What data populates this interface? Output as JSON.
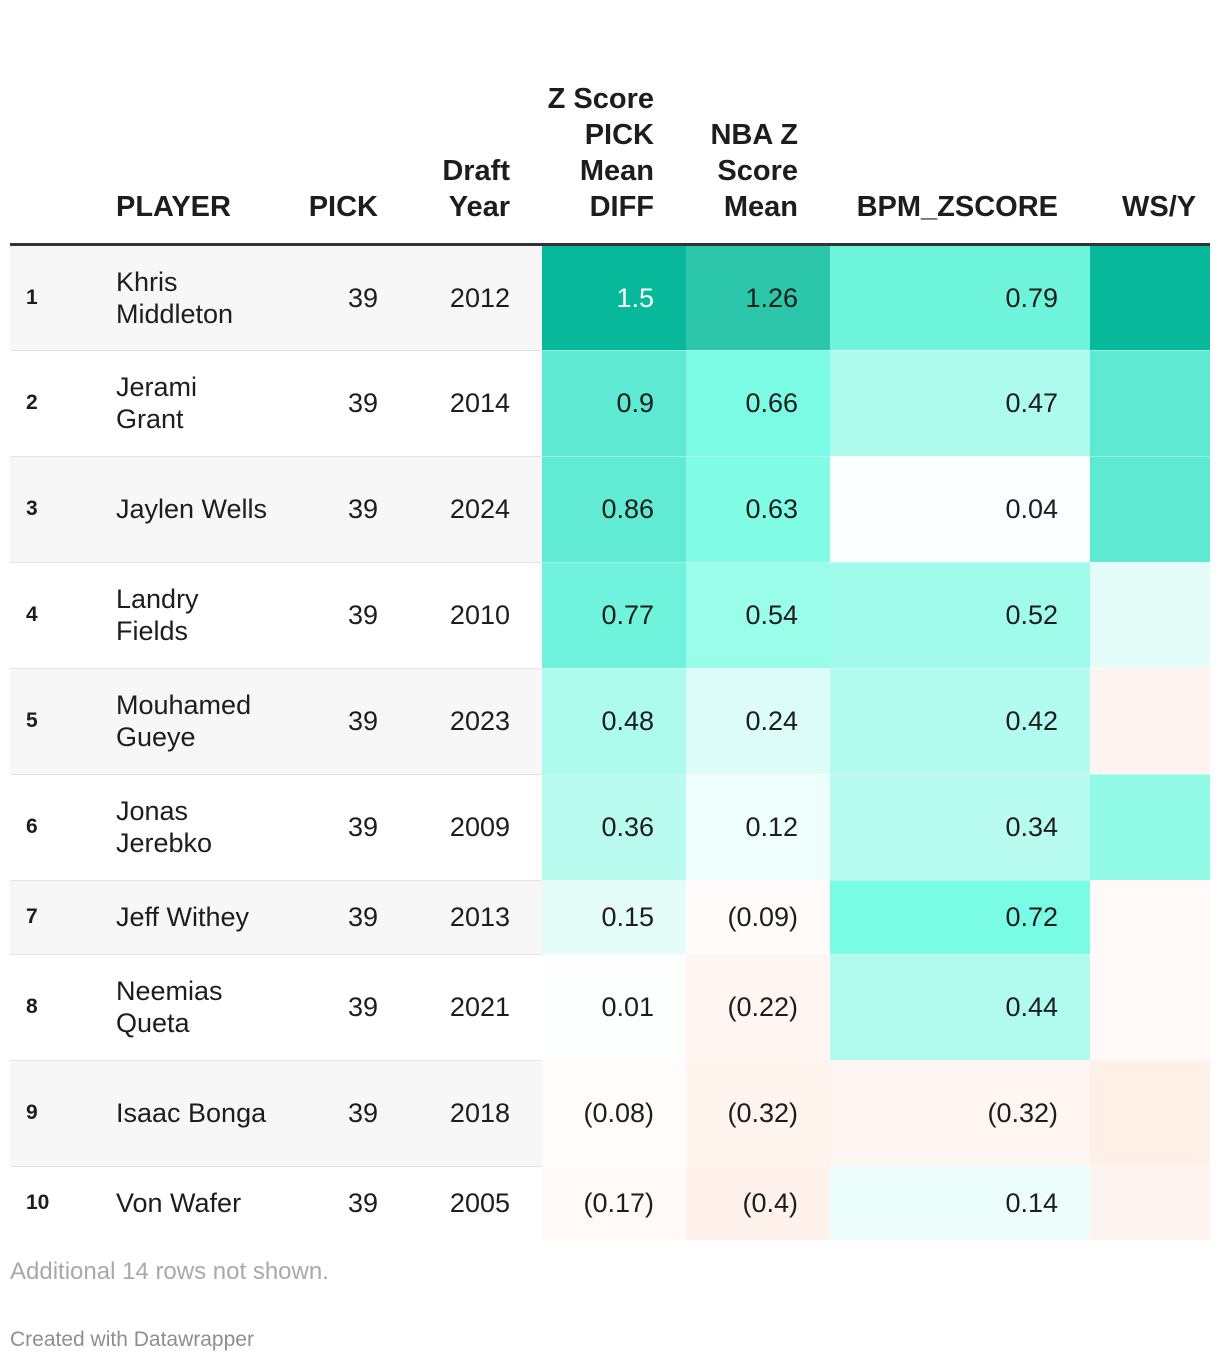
{
  "chart_data": {
    "type": "table",
    "columns": [
      {
        "key": "rank",
        "label": ""
      },
      {
        "key": "player",
        "label": "PLAYER"
      },
      {
        "key": "pick",
        "label": "PICK"
      },
      {
        "key": "draft_year",
        "label": "Draft Year"
      },
      {
        "key": "z_score_pick_mean_diff",
        "label": "Z Score PICK Mean DIFF"
      },
      {
        "key": "nba_z_score_mean",
        "label": "NBA Z Score Mean"
      },
      {
        "key": "bpm_zscore",
        "label": "BPM_ZSCORE"
      },
      {
        "key": "ws_y",
        "label": "WS/Y"
      }
    ],
    "rows": [
      {
        "rank": "1",
        "player": "Khris Middleton",
        "pick": "39",
        "draft_year": "2012",
        "z_score_pick_mean_diff": "1.5",
        "nba_z_score_mean": "1.26",
        "bpm_zscore": "0.79"
      },
      {
        "rank": "2",
        "player": "Jerami Grant",
        "pick": "39",
        "draft_year": "2014",
        "z_score_pick_mean_diff": "0.9",
        "nba_z_score_mean": "0.66",
        "bpm_zscore": "0.47"
      },
      {
        "rank": "3",
        "player": "Jaylen Wells",
        "pick": "39",
        "draft_year": "2024",
        "z_score_pick_mean_diff": "0.86",
        "nba_z_score_mean": "0.63",
        "bpm_zscore": "0.04"
      },
      {
        "rank": "4",
        "player": "Landry Fields",
        "pick": "39",
        "draft_year": "2010",
        "z_score_pick_mean_diff": "0.77",
        "nba_z_score_mean": "0.54",
        "bpm_zscore": "0.52"
      },
      {
        "rank": "5",
        "player": "Mouhamed Gueye",
        "pick": "39",
        "draft_year": "2023",
        "z_score_pick_mean_diff": "0.48",
        "nba_z_score_mean": "0.24",
        "bpm_zscore": "0.42"
      },
      {
        "rank": "6",
        "player": "Jonas Jerebko",
        "pick": "39",
        "draft_year": "2009",
        "z_score_pick_mean_diff": "0.36",
        "nba_z_score_mean": "0.12",
        "bpm_zscore": "0.34"
      },
      {
        "rank": "7",
        "player": "Jeff Withey",
        "pick": "39",
        "draft_year": "2013",
        "z_score_pick_mean_diff": "0.15",
        "nba_z_score_mean": "(0.09)",
        "bpm_zscore": "0.72"
      },
      {
        "rank": "8",
        "player": "Neemias Queta",
        "pick": "39",
        "draft_year": "2021",
        "z_score_pick_mean_diff": "0.01",
        "nba_z_score_mean": "(0.22)",
        "bpm_zscore": "0.44"
      },
      {
        "rank": "9",
        "player": "Isaac Bonga",
        "pick": "39",
        "draft_year": "2018",
        "z_score_pick_mean_diff": "(0.08)",
        "nba_z_score_mean": "(0.32)",
        "bpm_zscore": "(0.32)"
      },
      {
        "rank": "10",
        "player": "Von Wafer",
        "pick": "39",
        "draft_year": "2005",
        "z_score_pick_mean_diff": "(0.17)",
        "nba_z_score_mean": "(0.4)",
        "bpm_zscore": "0.14"
      }
    ],
    "cell_colors": [
      {
        "z": "#08b89a",
        "nba": "#2cc7aa",
        "bpm": "#6ff4dc",
        "ws": "#08b89a"
      },
      {
        "z": "#5de9d2",
        "nba": "#7bfbe3",
        "bpm": "#adfbec",
        "ws": "#5de9d2"
      },
      {
        "z": "#62ebd4",
        "nba": "#81fce5",
        "bpm": "#fbfefe",
        "ws": "#5de9d2"
      },
      {
        "z": "#70f3dc",
        "nba": "#99fdea",
        "bpm": "#a1fbea",
        "ws": "#e5fdf8"
      },
      {
        "z": "#adfbec",
        "nba": "#dcfdf7",
        "bpm": "#b1fcee",
        "ws": "#fff4ef"
      },
      {
        "z": "#bafbef",
        "nba": "#edfefb",
        "bpm": "#b8fcef",
        "ws": "#92fbe7"
      },
      {
        "z": "#e4fdf8",
        "nba": "#fffbfa",
        "bpm": "#7afbe3",
        "ws": "#fffaf7"
      },
      {
        "z": "#fcfefe",
        "nba": "#fff6f2",
        "bpm": "#b0fbed",
        "ws": "#fffaf7"
      },
      {
        "z": "#fffcfb",
        "nba": "#fff4ee",
        "bpm": "#fff6f1",
        "ws": "#fff0e8"
      },
      {
        "z": "#fffaf7",
        "nba": "#fff2ed",
        "bpm": "#ebfefb",
        "ws": "#fff5f0"
      }
    ],
    "footer_note": "Additional 14 rows not shown.",
    "credit": "Created with Datawrapper"
  }
}
